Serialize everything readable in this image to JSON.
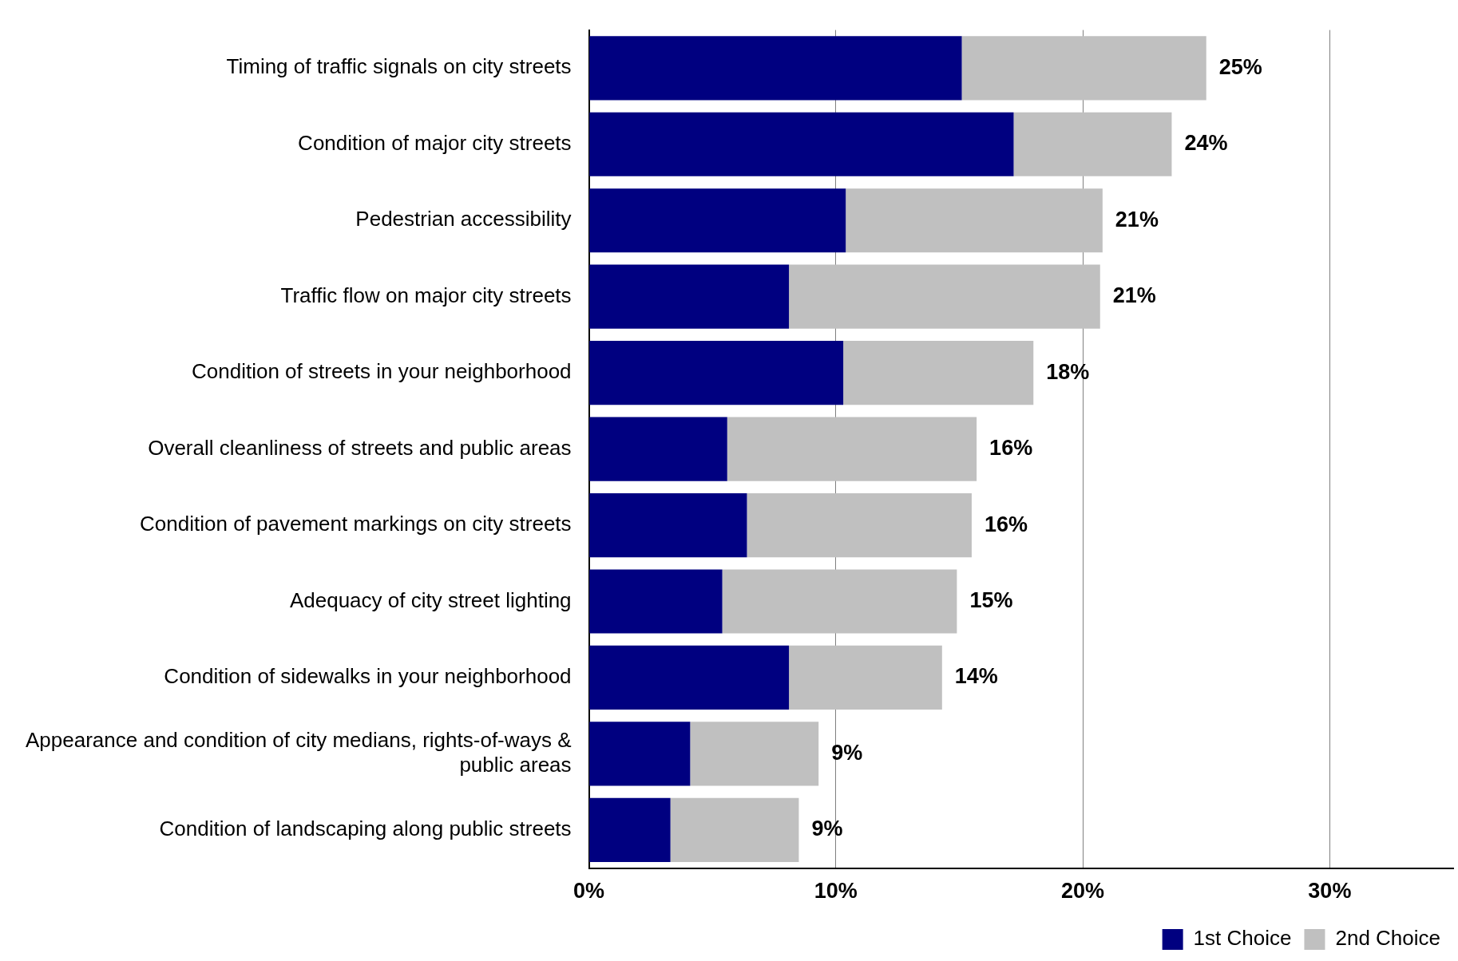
{
  "chart_data": {
    "type": "bar",
    "orientation": "horizontal",
    "stacked": true,
    "categories": [
      "Timing of traffic signals on city streets",
      "Condition of major city streets",
      "Pedestrian accessibility",
      "Traffic flow on major city streets",
      "Condition of streets in your neighborhood",
      "Overall cleanliness of streets and public areas",
      "Condition of pavement markings on city streets",
      "Adequacy of city street lighting",
      "Condition of sidewalks in your neighborhood",
      "Appearance and condition of city medians, rights-of-ways & public areas",
      "Condition of landscaping along public streets"
    ],
    "series": [
      {
        "name": "1st Choice",
        "color": "#000080",
        "values": [
          15.1,
          17.2,
          10.4,
          8.1,
          10.3,
          5.6,
          6.4,
          5.4,
          8.1,
          4.1,
          3.3
        ]
      },
      {
        "name": "2nd Choice",
        "color": "#c0c0c0",
        "values": [
          9.9,
          6.4,
          10.4,
          12.6,
          7.7,
          10.1,
          9.1,
          9.5,
          6.2,
          5.2,
          5.2
        ]
      }
    ],
    "totals": [
      "25%",
      "24%",
      "21%",
      "21%",
      "18%",
      "16%",
      "16%",
      "15%",
      "14%",
      "9%",
      "9%"
    ],
    "xlim": [
      0,
      35
    ],
    "xticks": [
      {
        "value": 0,
        "label": "0%"
      },
      {
        "value": 10,
        "label": "10%"
      },
      {
        "value": 20,
        "label": "20%"
      },
      {
        "value": 30,
        "label": "30%"
      }
    ],
    "grid": "x",
    "legend": "bottom right"
  }
}
